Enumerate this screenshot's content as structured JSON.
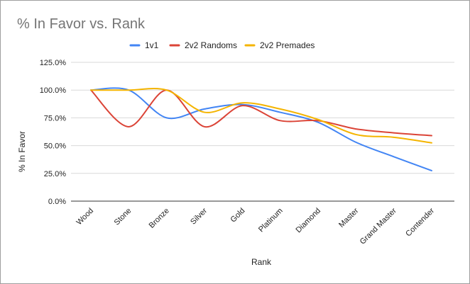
{
  "chart_data": {
    "type": "line",
    "title": "% In Favor vs. Rank",
    "xlabel": "Rank",
    "ylabel": "% In Favor",
    "categories": [
      "Wood",
      "Stone",
      "Bronze",
      "Silver",
      "Gold",
      "Platinum",
      "Diamond",
      "Master",
      "Grand Master",
      "Contender"
    ],
    "y_ticks": [
      "0.0%",
      "25.0%",
      "50.0%",
      "75.0%",
      "100.0%",
      "125.0%"
    ],
    "ylim": [
      0,
      125
    ],
    "grid": true,
    "legend_position": "top",
    "series": [
      {
        "name": "1v1",
        "color": "#4285f4",
        "values": [
          100,
          100,
          75,
          83,
          87,
          80,
          71,
          53,
          40,
          27.5
        ]
      },
      {
        "name": "2v2 Randoms",
        "color": "#db4437",
        "values": [
          100,
          67,
          100,
          67,
          86,
          72.5,
          72.5,
          65,
          61.5,
          59
        ]
      },
      {
        "name": "2v2 Premades",
        "color": "#f4b400",
        "values": [
          100,
          100,
          100,
          80,
          88.5,
          83,
          73.5,
          60,
          57.5,
          52.5
        ]
      }
    ]
  }
}
